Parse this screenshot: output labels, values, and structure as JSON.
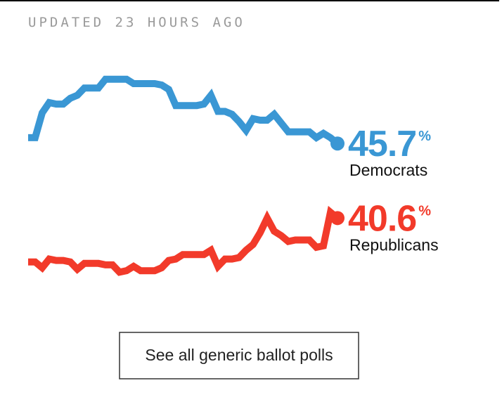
{
  "header": {
    "updated": "UPDATED 23 HOURS AGO"
  },
  "button": {
    "label": "See all generic ballot polls"
  },
  "chart_data": {
    "type": "line",
    "unit_label": "%",
    "ylim": [
      36,
      51
    ],
    "series": [
      {
        "name": "Democrats",
        "color": "#3a97d4",
        "values": [
          46.1,
          46.1,
          47.8,
          48.5,
          48.4,
          48.4,
          48.8,
          49.0,
          49.5,
          49.5,
          49.5,
          50.1,
          50.1,
          50.1,
          50.1,
          49.8,
          49.8,
          49.8,
          49.8,
          49.7,
          49.4,
          48.3,
          48.3,
          48.3,
          48.3,
          48.4,
          49.0,
          47.9,
          47.9,
          47.7,
          47.2,
          46.6,
          47.4,
          47.3,
          47.3,
          47.7,
          47.1,
          46.5,
          46.5,
          46.5,
          46.5,
          46.1,
          46.4,
          46.1,
          45.7
        ]
      },
      {
        "name": "Republicans",
        "color": "#f23a2a",
        "values": [
          37.6,
          37.6,
          37.2,
          37.8,
          37.7,
          37.7,
          37.6,
          37.1,
          37.5,
          37.5,
          37.5,
          37.4,
          37.4,
          36.9,
          37.0,
          37.3,
          37.0,
          37.0,
          37.0,
          37.2,
          37.7,
          37.8,
          38.1,
          38.1,
          38.1,
          38.1,
          38.4,
          37.3,
          37.8,
          37.8,
          37.9,
          38.4,
          38.8,
          39.6,
          40.6,
          39.7,
          39.4,
          39.0,
          39.1,
          39.1,
          39.1,
          38.6,
          38.7,
          41.0,
          40.6
        ]
      }
    ]
  }
}
